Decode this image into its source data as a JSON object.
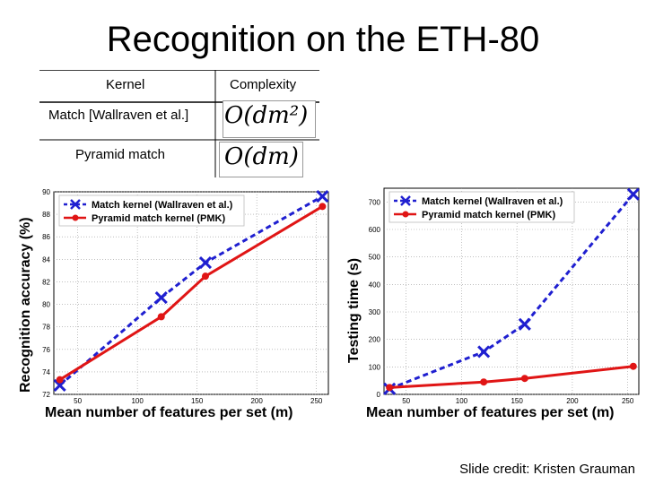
{
  "slide": {
    "title": "Recognition on the ETH-80",
    "credit": "Slide credit: Kristen Grauman"
  },
  "table": {
    "headers": [
      "Kernel",
      "Complexity"
    ],
    "rows": [
      {
        "kernel": "Match [Wallraven et al.]",
        "complexity": "O(dm²)"
      },
      {
        "kernel": "Pyramid match",
        "complexity": "O(dm)"
      }
    ]
  },
  "colors": {
    "match": "#1f1fd0",
    "pmk": "#e01515"
  },
  "chart_data": [
    {
      "type": "line",
      "title": "",
      "xlabel": "Mean number of features per set (m)",
      "ylabel": "Recognition accuracy (%)",
      "xlim": [
        30,
        260
      ],
      "ylim": [
        72,
        90
      ],
      "xticks": [
        50,
        100,
        150,
        200,
        250
      ],
      "yticks": [
        72,
        74,
        76,
        78,
        80,
        82,
        84,
        86,
        88,
        90
      ],
      "grid": true,
      "legend_position": "top-left",
      "series": [
        {
          "name": "Match kernel (Wallraven et al.)",
          "style": "dashed",
          "marker": "x",
          "x": [
            35,
            120,
            157,
            255
          ],
          "y": [
            72.8,
            80.6,
            83.7,
            89.6
          ]
        },
        {
          "name": "Pyramid match kernel (PMK)",
          "style": "solid",
          "marker": "dot",
          "x": [
            35,
            120,
            157,
            255
          ],
          "y": [
            73.3,
            78.9,
            82.5,
            88.7
          ]
        }
      ]
    },
    {
      "type": "line",
      "title": "",
      "xlabel": "Mean number of features per set (m)",
      "ylabel": "Testing time (s)",
      "xlim": [
        30,
        260
      ],
      "ylim": [
        0,
        750
      ],
      "xticks": [
        50,
        100,
        150,
        200,
        250
      ],
      "yticks": [
        0,
        100,
        200,
        300,
        400,
        500,
        600,
        700
      ],
      "grid": true,
      "legend_position": "top-left",
      "series": [
        {
          "name": "Match kernel (Wallraven et al.)",
          "style": "dashed",
          "marker": "x",
          "x": [
            35,
            120,
            157,
            255
          ],
          "y": [
            20,
            155,
            255,
            728
          ]
        },
        {
          "name": "Pyramid match kernel (PMK)",
          "style": "solid",
          "marker": "dot",
          "x": [
            35,
            120,
            157,
            255
          ],
          "y": [
            25,
            45,
            58,
            102
          ]
        }
      ]
    }
  ]
}
